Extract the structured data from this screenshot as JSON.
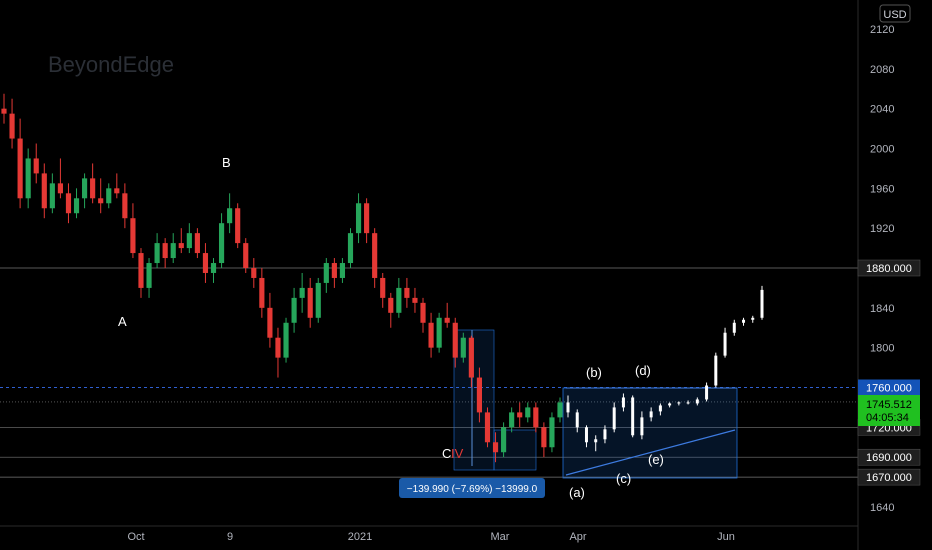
{
  "watermark": "BeyondEdge",
  "currency_label": "USD",
  "colors": {
    "background": "#000000",
    "up": "#26a65b",
    "down": "#e53935",
    "projection": "#ffffff",
    "grid_line": "#777777",
    "blue_box": "#1e6fd9",
    "label_bg": "#1f1f1f",
    "current_bg": "#20c020",
    "blue_label_bg": "#1453b8",
    "measure_bg": "#1a5aa8"
  },
  "chart_data": {
    "type": "candlestick",
    "title": "",
    "ylim": [
      1610,
      2140
    ],
    "ytick_labels": [
      2120,
      2080,
      2040,
      2000,
      1960,
      1920,
      1880,
      1840,
      1800,
      1760,
      1720,
      1690,
      1640
    ],
    "xtick_labels": [
      "Oct",
      "9",
      "2021",
      "Mar",
      "Apr",
      "Jun"
    ],
    "grid": false,
    "price_levels": [
      {
        "label": "1880.000",
        "value": 1880,
        "style": "solid",
        "label_style": "dark"
      },
      {
        "label": "1760.000",
        "value": 1760,
        "style": "dashed-blue",
        "label_style": "blue"
      },
      {
        "label": "1720.000",
        "value": 1720,
        "style": "solid",
        "label_style": "dark"
      },
      {
        "label": "1690.000",
        "value": 1690,
        "style": "solid",
        "label_style": "dark"
      },
      {
        "label": "1670.000",
        "value": 1670,
        "style": "solid",
        "label_style": "dark"
      }
    ],
    "current_price": {
      "value": 1745.512,
      "label": "1745.512",
      "countdown": "04:05:34"
    },
    "measure_tool": {
      "label": "−139.990 (−7.69%) −13999.0"
    },
    "wave_labels": [
      "A",
      "B",
      "C",
      "IV",
      "(a)",
      "(b)",
      "(c)",
      "(d)",
      "(e)"
    ],
    "candles_ohlc": [
      [
        2040,
        2055,
        2025,
        2035
      ],
      [
        2035,
        2050,
        2000,
        2010
      ],
      [
        2010,
        2030,
        1940,
        1950
      ],
      [
        1950,
        2000,
        1940,
        1990
      ],
      [
        1990,
        2005,
        1965,
        1975
      ],
      [
        1975,
        1985,
        1930,
        1940
      ],
      [
        1940,
        1975,
        1935,
        1965
      ],
      [
        1965,
        1990,
        1950,
        1955
      ],
      [
        1955,
        1965,
        1925,
        1935
      ],
      [
        1935,
        1960,
        1930,
        1950
      ],
      [
        1950,
        1975,
        1940,
        1970
      ],
      [
        1970,
        1985,
        1945,
        1950
      ],
      [
        1950,
        1970,
        1935,
        1945
      ],
      [
        1945,
        1965,
        1940,
        1960
      ],
      [
        1960,
        1975,
        1950,
        1955
      ],
      [
        1955,
        1965,
        1920,
        1930
      ],
      [
        1930,
        1945,
        1890,
        1895
      ],
      [
        1895,
        1900,
        1850,
        1860
      ],
      [
        1860,
        1890,
        1850,
        1885
      ],
      [
        1885,
        1915,
        1880,
        1905
      ],
      [
        1905,
        1910,
        1880,
        1890
      ],
      [
        1890,
        1915,
        1885,
        1905
      ],
      [
        1905,
        1920,
        1895,
        1900
      ],
      [
        1900,
        1925,
        1895,
        1915
      ],
      [
        1915,
        1920,
        1890,
        1895
      ],
      [
        1895,
        1905,
        1865,
        1875
      ],
      [
        1875,
        1890,
        1865,
        1885
      ],
      [
        1885,
        1935,
        1880,
        1925
      ],
      [
        1925,
        1955,
        1915,
        1940
      ],
      [
        1940,
        1945,
        1900,
        1905
      ],
      [
        1905,
        1910,
        1875,
        1880
      ],
      [
        1880,
        1890,
        1860,
        1870
      ],
      [
        1870,
        1880,
        1830,
        1840
      ],
      [
        1840,
        1855,
        1800,
        1810
      ],
      [
        1810,
        1820,
        1770,
        1790
      ],
      [
        1790,
        1830,
        1785,
        1825
      ],
      [
        1825,
        1860,
        1815,
        1850
      ],
      [
        1850,
        1875,
        1835,
        1860
      ],
      [
        1860,
        1870,
        1820,
        1830
      ],
      [
        1830,
        1870,
        1825,
        1865
      ],
      [
        1865,
        1890,
        1855,
        1885
      ],
      [
        1885,
        1890,
        1860,
        1870
      ],
      [
        1870,
        1890,
        1865,
        1885
      ],
      [
        1885,
        1920,
        1880,
        1915
      ],
      [
        1915,
        1955,
        1905,
        1945
      ],
      [
        1945,
        1950,
        1905,
        1915
      ],
      [
        1915,
        1920,
        1860,
        1870
      ],
      [
        1870,
        1875,
        1840,
        1850
      ],
      [
        1850,
        1855,
        1820,
        1835
      ],
      [
        1835,
        1870,
        1830,
        1860
      ],
      [
        1860,
        1870,
        1840,
        1850
      ],
      [
        1850,
        1860,
        1835,
        1845
      ],
      [
        1845,
        1850,
        1815,
        1825
      ],
      [
        1825,
        1835,
        1790,
        1800
      ],
      [
        1800,
        1835,
        1795,
        1830
      ],
      [
        1830,
        1845,
        1820,
        1825
      ],
      [
        1825,
        1830,
        1780,
        1790
      ],
      [
        1790,
        1815,
        1785,
        1810
      ],
      [
        1810,
        1812,
        1760,
        1770
      ],
      [
        1770,
        1780,
        1725,
        1735
      ],
      [
        1735,
        1740,
        1700,
        1705
      ],
      [
        1705,
        1715,
        1685,
        1695
      ],
      [
        1695,
        1725,
        1690,
        1720
      ],
      [
        1720,
        1740,
        1715,
        1735
      ],
      [
        1735,
        1745,
        1720,
        1730
      ],
      [
        1730,
        1745,
        1725,
        1740
      ],
      [
        1740,
        1745,
        1715,
        1720
      ],
      [
        1720,
        1725,
        1690,
        1700
      ],
      [
        1700,
        1735,
        1695,
        1730
      ],
      [
        1730,
        1750,
        1725,
        1745
      ]
    ],
    "projection_ohlc": [
      [
        1745,
        1752,
        1730,
        1735
      ],
      [
        1735,
        1738,
        1715,
        1720
      ],
      [
        1720,
        1722,
        1700,
        1705
      ],
      [
        1705,
        1712,
        1696,
        1708
      ],
      [
        1708,
        1722,
        1704,
        1718
      ],
      [
        1718,
        1745,
        1715,
        1740
      ],
      [
        1740,
        1754,
        1736,
        1750
      ],
      [
        1750,
        1752,
        1710,
        1712
      ],
      [
        1712,
        1736,
        1708,
        1730
      ],
      [
        1730,
        1740,
        1726,
        1736
      ],
      [
        1736,
        1744,
        1732,
        1742
      ],
      [
        1742,
        1745,
        1740,
        1744
      ],
      [
        1744,
        1746,
        1742,
        1745
      ],
      [
        1745,
        1747,
        1743,
        1744
      ],
      [
        1744,
        1750,
        1742,
        1748
      ],
      [
        1748,
        1765,
        1746,
        1762
      ],
      [
        1762,
        1795,
        1760,
        1792
      ],
      [
        1792,
        1820,
        1790,
        1815
      ],
      [
        1815,
        1828,
        1812,
        1825
      ],
      [
        1825,
        1830,
        1822,
        1828
      ],
      [
        1828,
        1832,
        1825,
        1830
      ],
      [
        1830,
        1862,
        1828,
        1858
      ]
    ]
  }
}
